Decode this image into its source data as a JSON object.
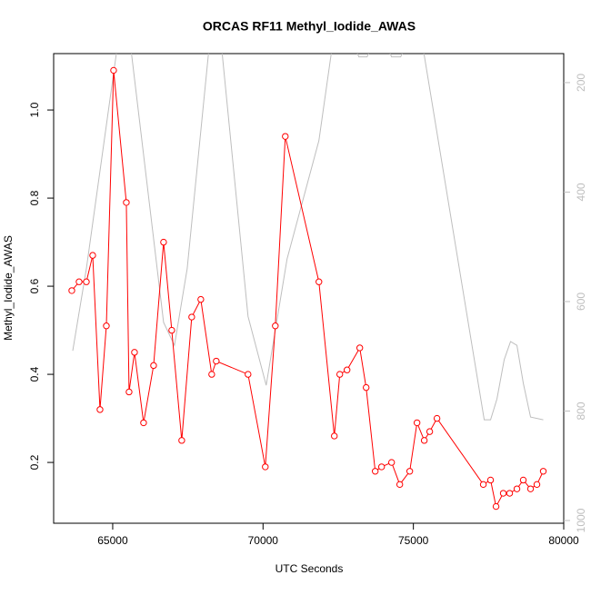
{
  "chart_data": {
    "type": "line",
    "title": "ORCAS RF11 Methyl_Iodide_AWAS",
    "xlabel": "UTC Seconds",
    "ylabel": "Methyl_Iodide_AWAS",
    "xlim": [
      63036,
      80000
    ],
    "xticks": [
      65000,
      70000,
      75000,
      80000
    ],
    "ylim": [
      0.062,
      1.128
    ],
    "yticks": [
      0.2,
      0.4,
      0.6,
      0.8,
      {
        "value": 1.0,
        "label": "1.0"
      }
    ],
    "y2lim": [
      1005,
      147
    ],
    "y2ticks": [
      200,
      400,
      600,
      800,
      1000
    ],
    "series": [
      {
        "color": "#ff0000",
        "marker": "circle",
        "x": [
          63640,
          63882,
          64124,
          64335,
          64577,
          64789,
          65030,
          65453,
          65544,
          65725,
          66027,
          66360,
          66692,
          66964,
          67296,
          67628,
          67930,
          68293,
          68444,
          69501,
          70075,
          70408,
          70740,
          71858,
          72371,
          72552,
          72794,
          73217,
          73429,
          73731,
          73942,
          74275,
          74547,
          74879,
          75121,
          75362,
          75543,
          75785,
          77326,
          77567,
          77749,
          77990,
          78202,
          78444,
          78655,
          78897,
          79108,
          79320
        ],
        "values": [
          0.59,
          0.61,
          0.61,
          0.67,
          0.32,
          0.51,
          1.09,
          0.79,
          0.36,
          0.45,
          0.29,
          0.42,
          0.7,
          0.5,
          0.25,
          0.53,
          0.57,
          0.4,
          0.43,
          0.4,
          0.19,
          0.51,
          0.94,
          0.61,
          0.26,
          0.4,
          0.41,
          0.46,
          0.37,
          0.18,
          0.19,
          0.2,
          0.15,
          0.18,
          0.29,
          0.25,
          0.27,
          0.3,
          0.15,
          0.16,
          0.1,
          0.13,
          0.13,
          0.14,
          0.16,
          0.14,
          0.15,
          0.18
        ]
      },
      {
        "color": "#bebebe",
        "axis": "y2",
        "x": [
          63671,
          64124,
          65393,
          66692,
          67054,
          67477,
          68414,
          69501,
          70105,
          70800,
          71858,
          72492,
          73187,
          73459,
          73882,
          74275,
          74577,
          75151,
          77356,
          77567,
          77779,
          78021,
          78232,
          78444,
          78655,
          78897,
          79320
        ],
        "values": [
          690,
          540,
          40,
          638,
          680,
          540,
          20,
          627,
          753,
          522,
          306,
          60,
          153,
          153,
          100,
          153,
          153,
          80,
          816,
          816,
          778,
          706,
          673,
          680,
          749,
          811,
          816
        ]
      }
    ]
  }
}
